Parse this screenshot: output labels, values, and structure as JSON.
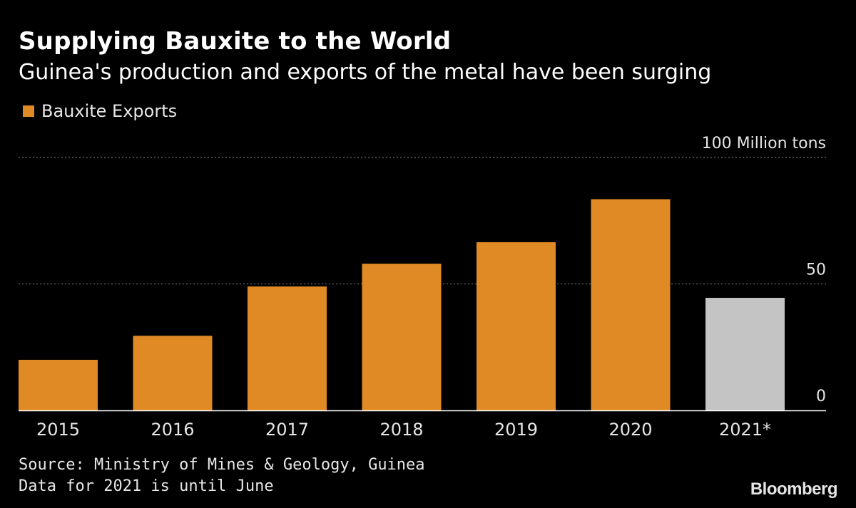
{
  "header": {
    "title": "Supplying Bauxite to the World",
    "subtitle": "Guinea's production and exports of the metal have been surging"
  },
  "legend": {
    "label": "Bauxite Exports",
    "color": "#e08a25"
  },
  "chart_data": {
    "type": "bar",
    "categories": [
      "2015",
      "2016",
      "2017",
      "2018",
      "2019",
      "2020",
      "2021*"
    ],
    "series": [
      {
        "name": "Bauxite Exports",
        "values": [
          20,
          29.5,
          49,
          58,
          66.5,
          83.5,
          44.5
        ]
      }
    ],
    "highlight_colors": [
      "#e08a25",
      "#e08a25",
      "#e08a25",
      "#e08a25",
      "#e08a25",
      "#e08a25",
      "#c4c4c4"
    ],
    "ylim": [
      0,
      100
    ],
    "yticks": [
      0,
      50,
      100
    ],
    "ytick_labels": [
      "0",
      "50",
      "100 Million tons"
    ],
    "grid": true,
    "legend_position": "top-left"
  },
  "footer": {
    "source": "Source: Ministry of Mines & Geology, Guinea",
    "note": "Data for 2021 is until June",
    "brand": "Bloomberg"
  }
}
